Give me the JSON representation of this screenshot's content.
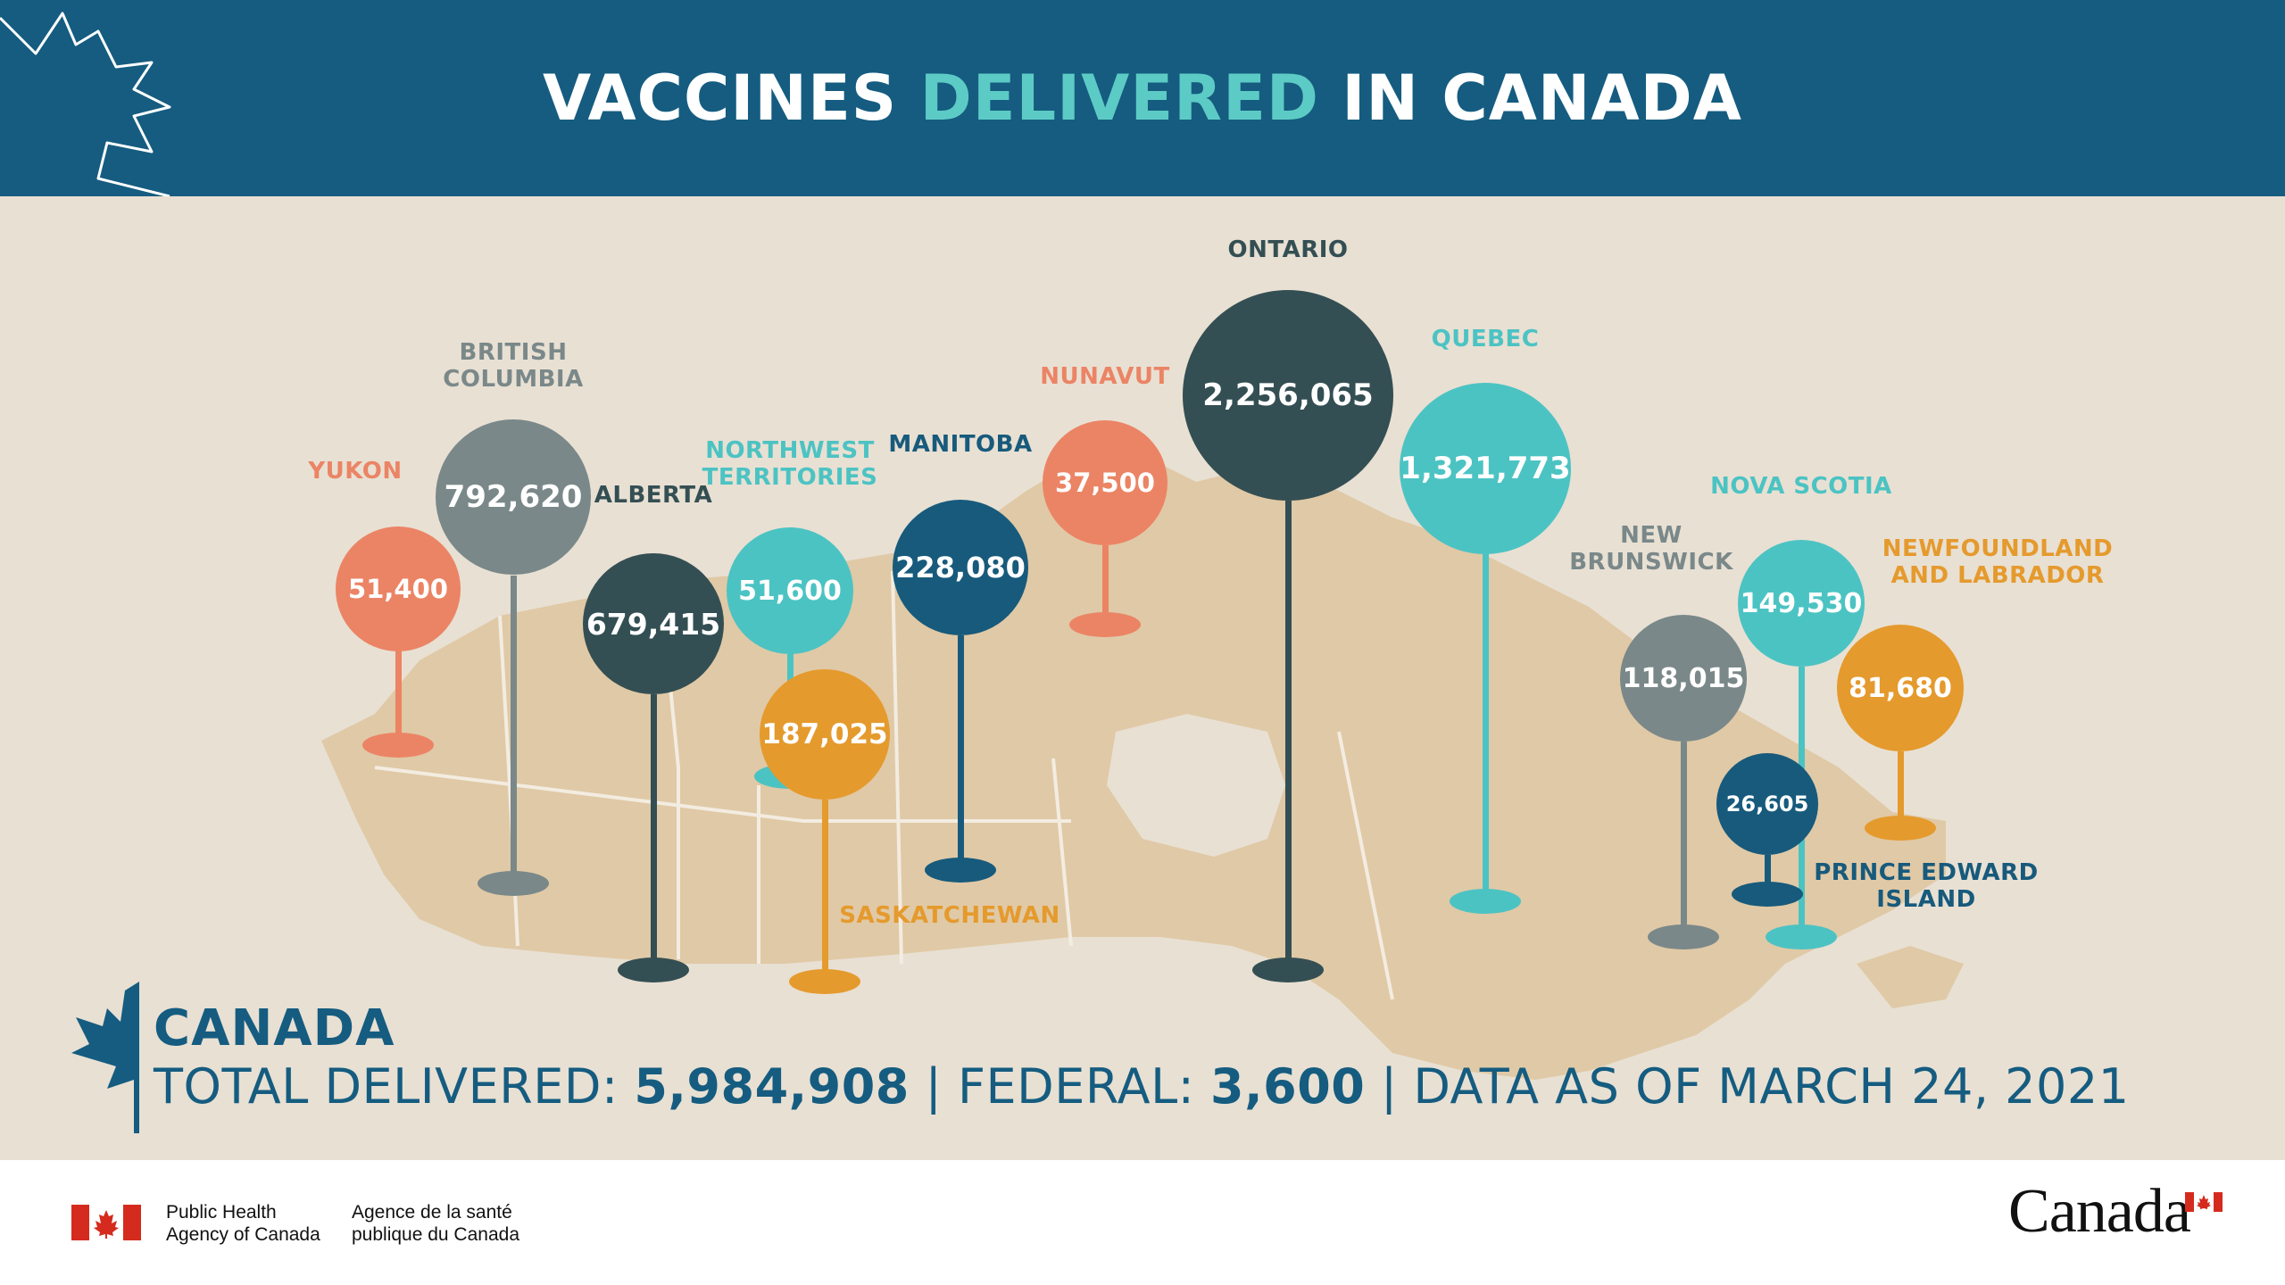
{
  "header": {
    "title_part1": "VACCINES",
    "title_part2": "DELIVERED",
    "title_part3": "IN CANADA"
  },
  "colors": {
    "header_bg": "#155c80",
    "highlight": "#5dcbc5",
    "background": "#e8e0d3",
    "map_land": "#e0c9a6"
  },
  "provinces": [
    {
      "name": "YUKON",
      "value": "51,400",
      "color": "#eb8465"
    },
    {
      "name": "BRITISH\nCOLUMBIA",
      "value": "792,620",
      "color": "#7a8889"
    },
    {
      "name": "ALBERTA",
      "value": "679,415",
      "color": "#344f53"
    },
    {
      "name": "NORTHWEST\nTERRITORIES",
      "value": "51,600",
      "color": "#4cc3c3"
    },
    {
      "name": "SASKATCHEWAN",
      "value": "187,025",
      "color": "#e59a2d"
    },
    {
      "name": "MANITOBA",
      "value": "228,080",
      "color": "#175a7c"
    },
    {
      "name": "NUNAVUT",
      "value": "37,500",
      "color": "#eb8465"
    },
    {
      "name": "ONTARIO",
      "value": "2,256,065",
      "color": "#344f53"
    },
    {
      "name": "QUEBEC",
      "value": "1,321,773",
      "color": "#4cc3c3"
    },
    {
      "name": "NEW\nBRUNSWICK",
      "value": "118,015",
      "color": "#7a8889"
    },
    {
      "name": "NOVA SCOTIA",
      "value": "149,530",
      "color": "#4cc3c3"
    },
    {
      "name": "NEWFOUNDLAND\nAND LABRADOR",
      "value": "81,680",
      "color": "#e59a2d"
    },
    {
      "name": "PRINCE EDWARD\nISLAND",
      "value": "26,605",
      "color": "#175a7c"
    }
  ],
  "summary": {
    "country": "CANADA",
    "total_label": "TOTAL DELIVERED:",
    "total_value": "5,984,908",
    "federal_label": "FEDERAL:",
    "federal_value": "3,600",
    "date_text": "DATA AS OF MARCH 24, 2021",
    "separator": "|"
  },
  "footer": {
    "agency_en": "Public Health\nAgency of Canada",
    "agency_fr": "Agence de la santé\npublique du Canada",
    "wordmark": "Canada"
  }
}
